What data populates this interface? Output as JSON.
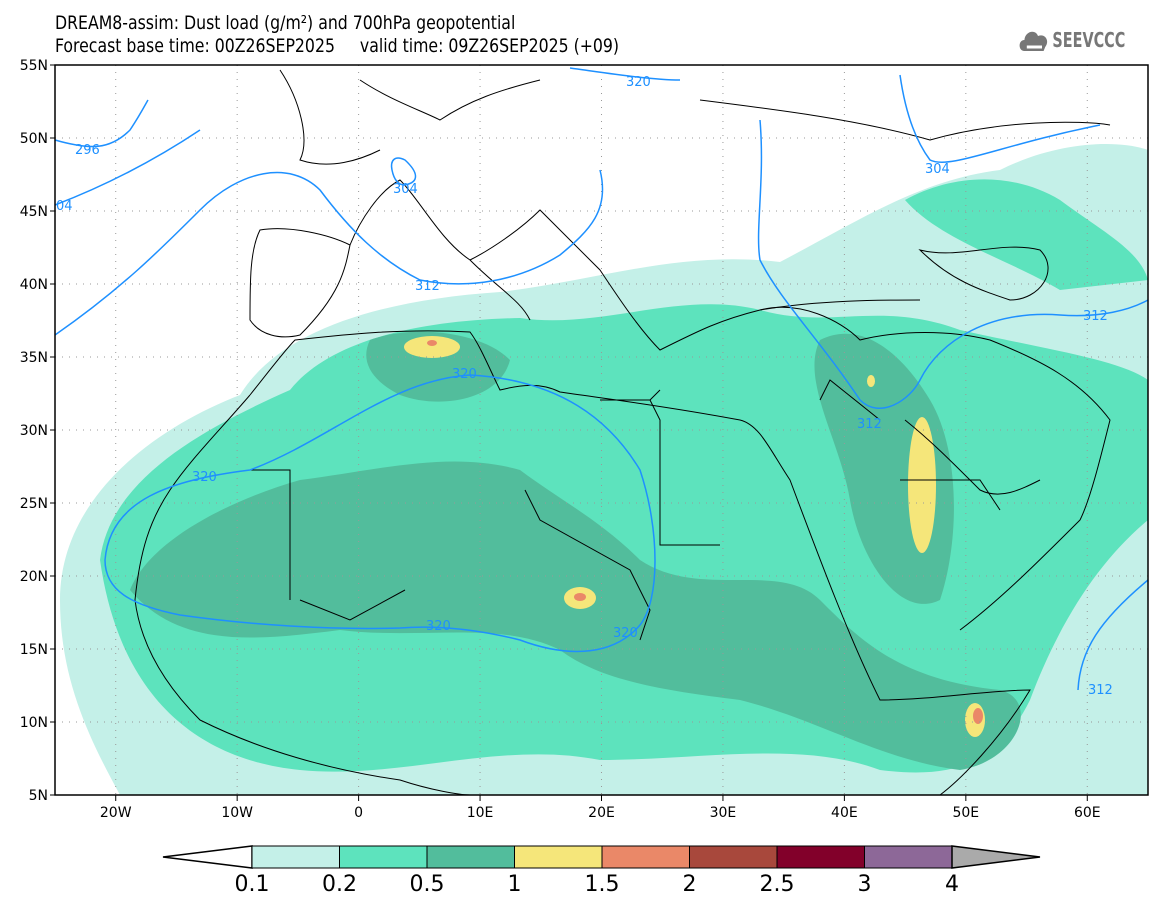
{
  "header": {
    "title": "DREAM8-assim: Dust load (g/m²) and 700hPa geopotential",
    "subtitle": "Forecast base time: 00Z26SEP2025     valid time: 09Z26SEP2025 (+09)"
  },
  "logo": {
    "text": "SEEVCCC",
    "icon": "cloud-icon"
  },
  "map": {
    "lon_ticks": [
      "20W",
      "10W",
      "0",
      "10E",
      "20E",
      "30E",
      "40E",
      "50E",
      "60E"
    ],
    "lat_ticks": [
      "55N",
      "50N",
      "45N",
      "40N",
      "35N",
      "30N",
      "25N",
      "20N",
      "15N",
      "10N",
      "5N"
    ],
    "contour_labels": [
      "296",
      "304",
      "04",
      "312",
      "320",
      "320",
      "320",
      "320",
      "312",
      "312",
      "304",
      "320",
      "312"
    ],
    "contour_color": "#1e90ff"
  },
  "colorbar": {
    "labels": [
      "0.1",
      "0.2",
      "0.5",
      "1",
      "1.5",
      "2",
      "2.5",
      "3",
      "4"
    ],
    "colors": [
      "#c4f0e8",
      "#5de3bd",
      "#52bd9c",
      "#f5e67a",
      "#ea8868",
      "#a8483c",
      "#82002a",
      "#8d6898",
      "#aaaaaa"
    ]
  }
}
